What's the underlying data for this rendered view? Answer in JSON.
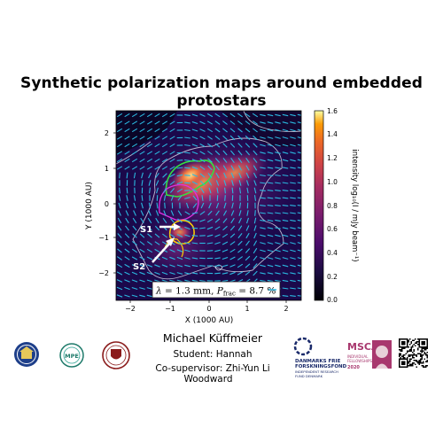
{
  "title": "Synthetic polarization maps around embedded protostars",
  "author": "Michael Küffmeier",
  "student_line": "Student: Hannah",
  "student_surname": "Woodward",
  "cosupervisor_line": "Co-supervisor: Zhi-Yun Li",
  "figure": {
    "annotation": "λ = 1.3 mm, P_frac = 8.7 %",
    "source_labels": [
      "S1",
      "S2"
    ],
    "colors": {
      "background_dark": "#1a0a4a",
      "vector": "#2ab8e0",
      "green_contour": "#35e040",
      "yellow_contour": "#ffd000",
      "magenta_contour": "#e030e0"
    }
  },
  "chart_data": {
    "type": "heatmap",
    "title": "",
    "xlabel": "X (1000 AU)",
    "ylabel": "Y (1000 AU)",
    "xlim": [
      -2.8,
      2.8
    ],
    "ylim": [
      -2.8,
      2.8
    ],
    "xticks": [
      "−2",
      "−1",
      "0",
      "1",
      "2"
    ],
    "yticks": [
      "2",
      "1",
      "0",
      "−1",
      "−2"
    ],
    "colorbar": {
      "label": "intensity log₁₀(I / mJy beam⁻¹)",
      "range": [
        0.0,
        1.6
      ],
      "ticks": [
        "1.6",
        "1.4",
        "1.2",
        "1.0",
        "0.8",
        "0.6",
        "0.4",
        "0.2",
        "0.0"
      ],
      "colormap": "inferno-like"
    }
  },
  "logos": {
    "left": [
      "university-seal-logo",
      "mpe-logo",
      "copenhagen-seal-logo"
    ],
    "right_text": {
      "dff_line1": "DANMARKS FRIE",
      "dff_line2": "FORSKNINGSFOND",
      "dff_line3": "INDEPENDENT RESEARCH",
      "dff_line4": "FUND DENMARK",
      "msca": "MSCA",
      "msca_sub1": "INDIVIDUAL",
      "msca_sub2": "FELLOWSHIPS",
      "msca_year": "2020"
    }
  }
}
